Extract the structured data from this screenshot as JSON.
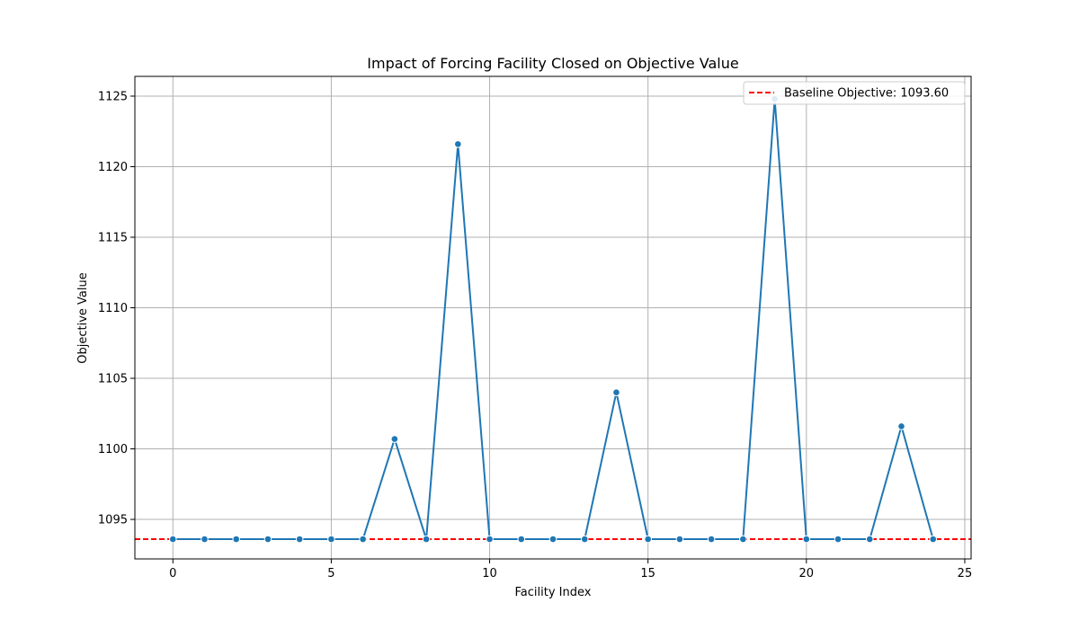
{
  "chart_data": {
    "type": "line",
    "title": "Impact of Forcing Facility Closed on Objective Value",
    "xlabel": "Facility Index",
    "ylabel": "Objective Value",
    "xlim": [
      -1.2,
      25.2
    ],
    "ylim": [
      1092.2,
      1126.4
    ],
    "xticks": [
      0,
      5,
      10,
      15,
      20,
      25
    ],
    "yticks": [
      1095,
      1100,
      1105,
      1110,
      1115,
      1120,
      1125
    ],
    "grid": true,
    "legend_position": "top-right",
    "series": [
      {
        "type": "line",
        "markers": true,
        "color": "#1f77b4",
        "x": [
          0,
          1,
          2,
          3,
          4,
          5,
          6,
          7,
          8,
          9,
          10,
          11,
          12,
          13,
          14,
          15,
          16,
          17,
          18,
          19,
          20,
          21,
          22,
          23,
          24
        ],
        "y": [
          1093.6,
          1093.6,
          1093.6,
          1093.6,
          1093.6,
          1093.6,
          1093.6,
          1100.7,
          1093.6,
          1121.6,
          1093.6,
          1093.6,
          1093.6,
          1093.6,
          1104.0,
          1093.6,
          1093.6,
          1093.6,
          1093.6,
          1124.8,
          1093.6,
          1093.6,
          1093.6,
          1101.6,
          1093.6
        ]
      }
    ],
    "reference_lines": [
      {
        "name": "Baseline Objective: 1093.60",
        "y": 1093.6,
        "color": "#ff0000",
        "style": "dashed"
      }
    ]
  }
}
